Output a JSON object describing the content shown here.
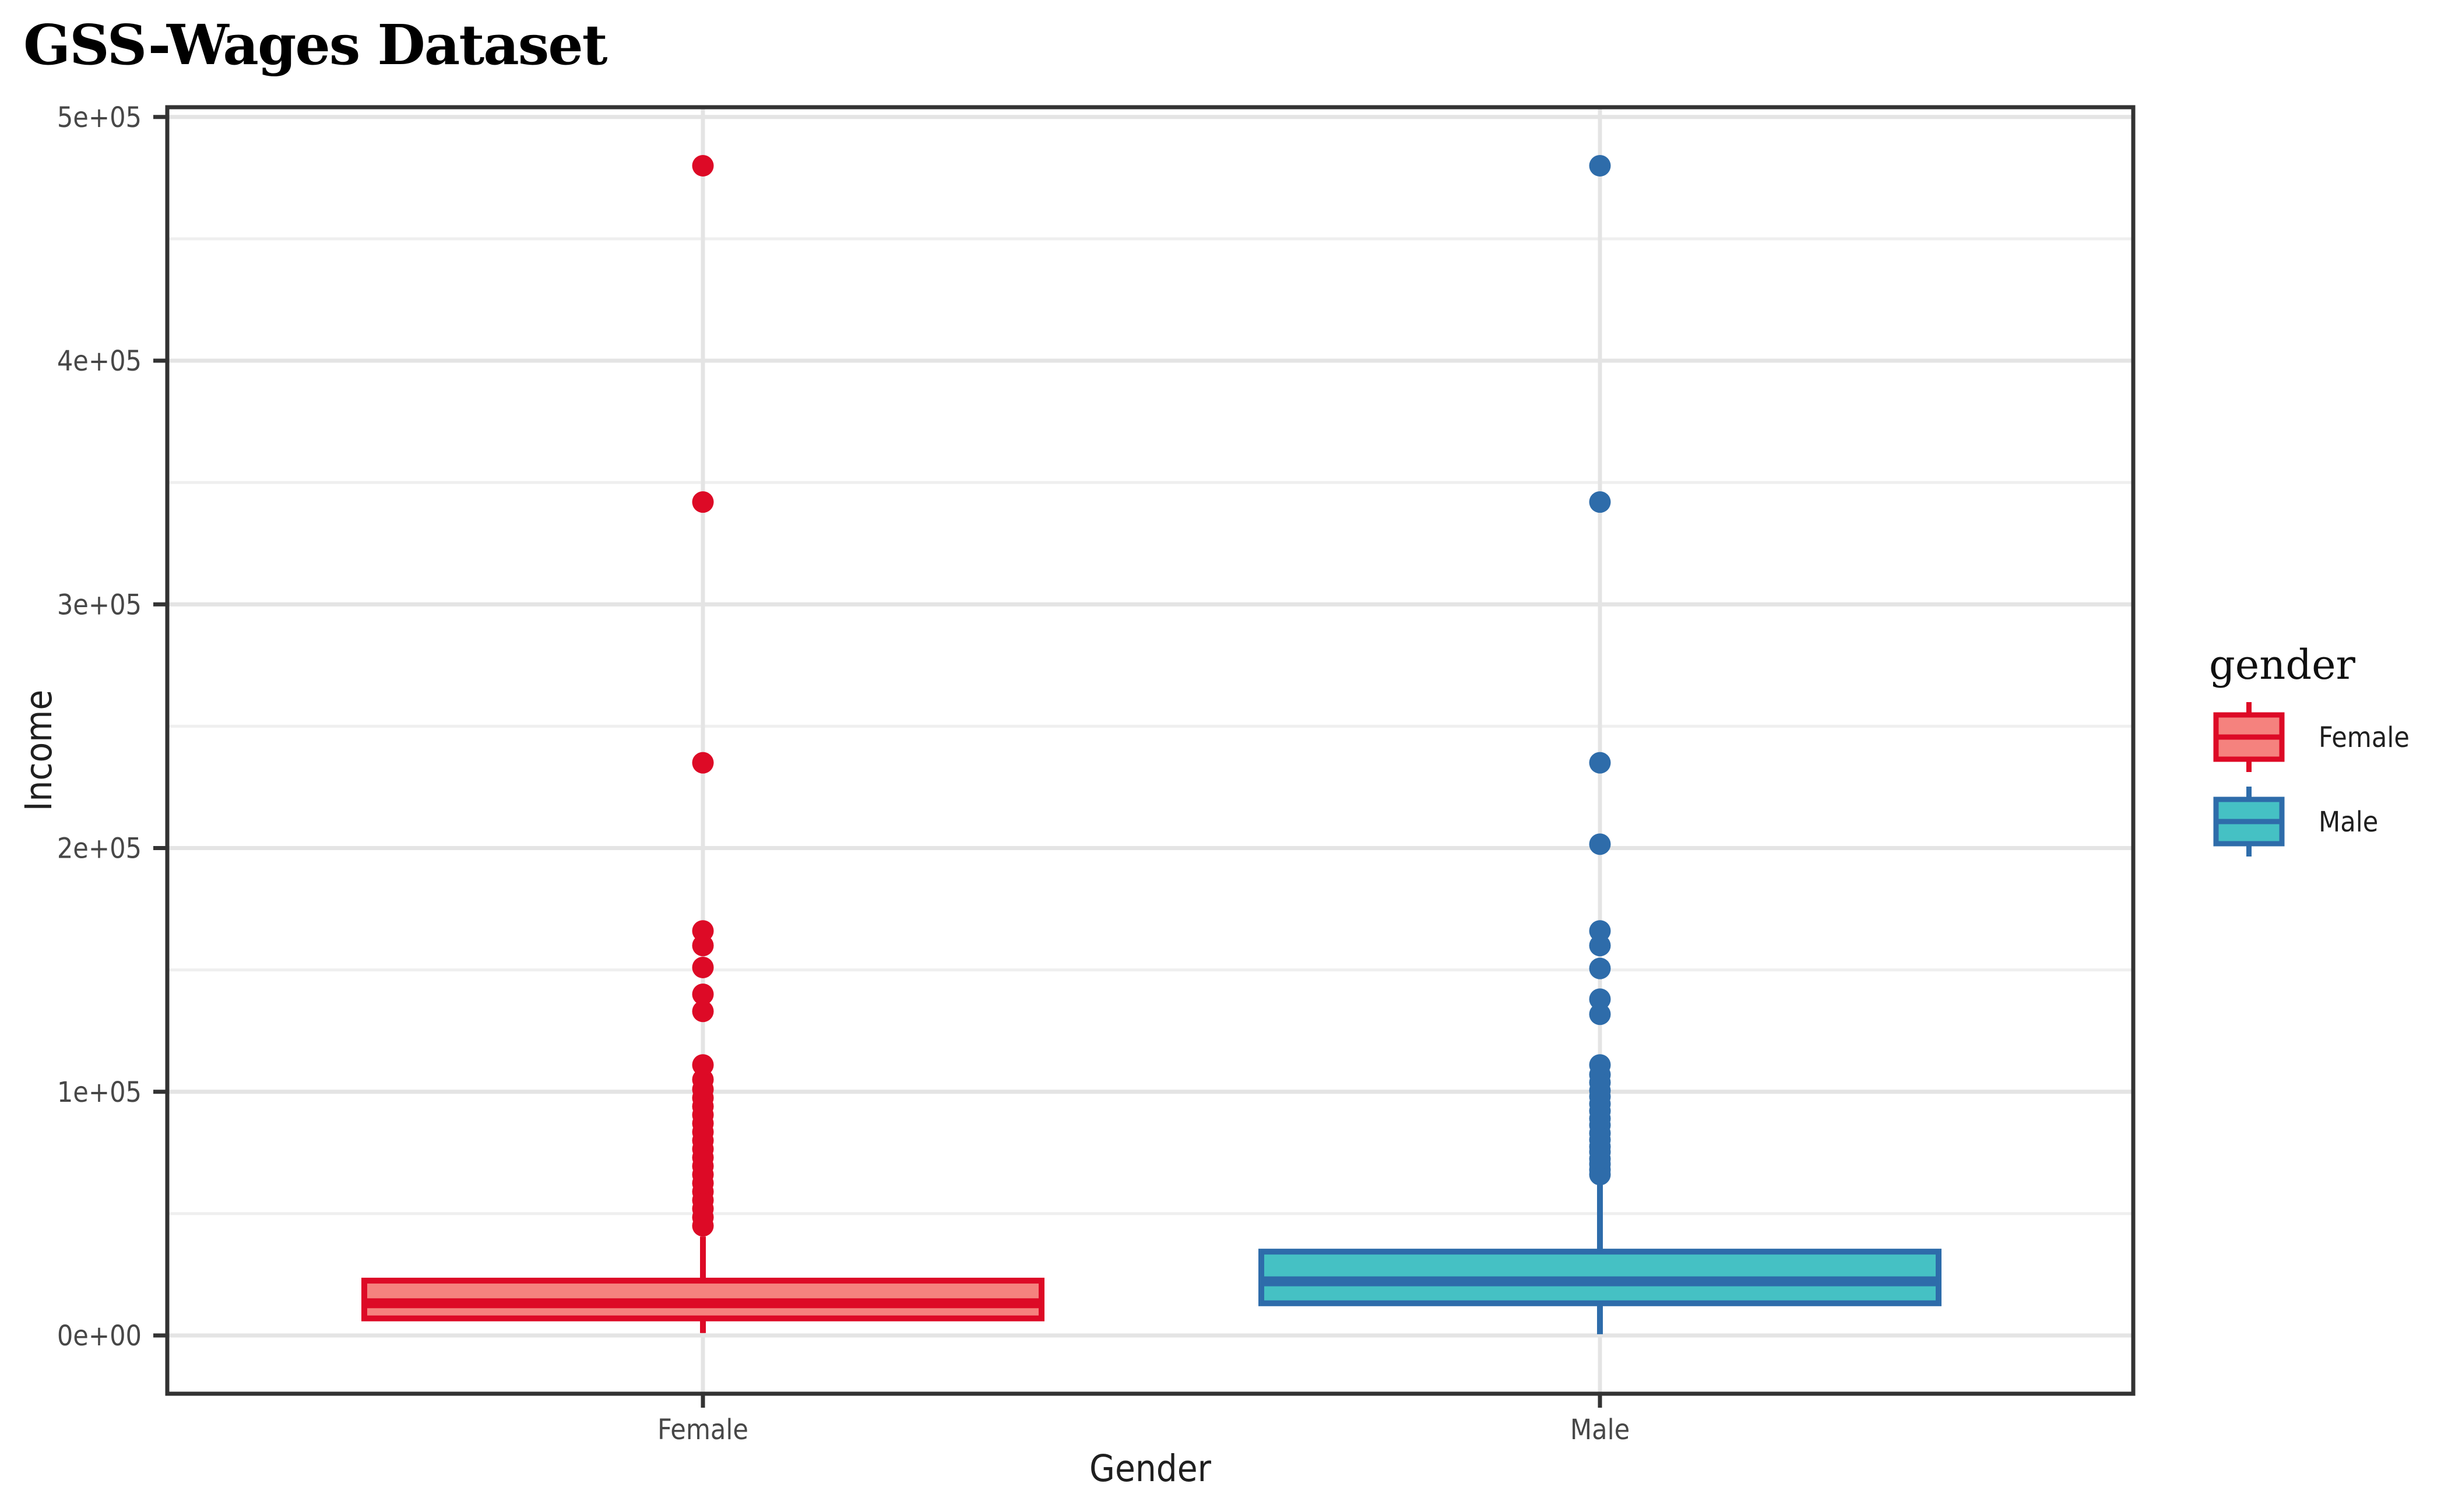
{
  "title": "GSS-Wages Dataset",
  "chart_data": {
    "type": "boxplot",
    "title": "GSS-Wages Dataset",
    "xlabel": "Gender",
    "ylabel": "Income",
    "categories": [
      "Female",
      "Male"
    ],
    "y_ticks": [
      "0e+00",
      "1e+05",
      "2e+05",
      "3e+05",
      "4e+05",
      "5e+05"
    ],
    "y_tick_values": [
      0,
      100000,
      200000,
      300000,
      400000,
      500000
    ],
    "ylim": [
      -24000,
      504000
    ],
    "grid": "horizontal major+minor, vertical major at each category",
    "legend": {
      "title": "gender",
      "position": "right",
      "entries": [
        {
          "label": "Female",
          "stroke": "#DD0A26",
          "fill": "#F5827E"
        },
        {
          "label": "Male",
          "stroke": "#2E6CAA",
          "fill": "#45C1C4"
        }
      ]
    },
    "colors": {
      "grid_major": "#E4E4E4",
      "grid_minor": "#EFEFEF",
      "panel_border": "#333333",
      "axis_tick": "#333333",
      "panel_background": "#FFFFFF"
    },
    "series": [
      {
        "name": "Female",
        "stroke": "#DD0A26",
        "fill": "#F5827E",
        "stats": {
          "whisker_low": 1000,
          "q1": 7000,
          "median": 13200,
          "q3": 22500,
          "whisker_high": 40600
        },
        "outliers": [
          45000,
          48500,
          52000,
          55500,
          59000,
          62500,
          66000,
          69500,
          73000,
          76500,
          80000,
          83500,
          87000,
          90500,
          94000,
          97500,
          101000,
          105000,
          111000,
          133000,
          140000,
          151000,
          160000,
          166000,
          235000,
          342000,
          480000
        ]
      },
      {
        "name": "Male",
        "stroke": "#2E6CAA",
        "fill": "#45C1C4",
        "stats": {
          "whisker_low": 500,
          "q1": 13200,
          "median": 22200,
          "q3": 34400,
          "whisker_high": 62400
        },
        "outliers": [
          66000,
          68000,
          70300,
          72500,
          75300,
          77500,
          80300,
          83000,
          86300,
          89000,
          92100,
          95000,
          98000,
          100500,
          103800,
          107000,
          111000,
          131800,
          138000,
          150600,
          160000,
          166000,
          201600,
          235000,
          342000,
          480000
        ]
      }
    ]
  }
}
